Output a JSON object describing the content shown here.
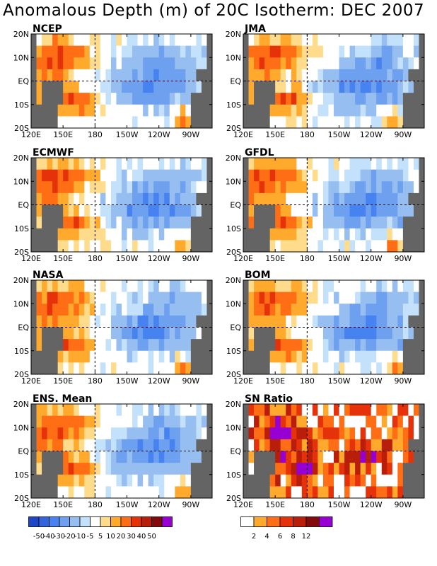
{
  "title": "Anomalous Depth (m) of 20C Isotherm: DEC 2007",
  "chart_data": [
    {
      "type": "heatmap",
      "title": "NCEP",
      "field": "anomaly",
      "seed": 11
    },
    {
      "type": "heatmap",
      "title": "JMA",
      "field": "anomaly",
      "seed": 23
    },
    {
      "type": "heatmap",
      "title": "ECMWF",
      "field": "anomaly",
      "seed": 37
    },
    {
      "type": "heatmap",
      "title": "GFDL",
      "field": "anomaly",
      "seed": 41
    },
    {
      "type": "heatmap",
      "title": "NASA",
      "field": "anomaly",
      "seed": 53
    },
    {
      "type": "heatmap",
      "title": "BOM",
      "field": "anomaly",
      "seed": 67
    },
    {
      "type": "heatmap",
      "title": "ENS. Mean",
      "field": "anomaly",
      "seed": 79
    },
    {
      "type": "heatmap",
      "title": "SN Ratio",
      "field": "snratio",
      "seed": 97
    }
  ],
  "axes": {
    "x_ticks": [
      "120E",
      "150E",
      "180",
      "150W",
      "120W",
      "90W"
    ],
    "x_values": [
      120,
      150,
      180,
      210,
      240,
      270
    ],
    "x_range": [
      120,
      290
    ],
    "y_ticks": [
      "20N",
      "10N",
      "EQ",
      "10S",
      "20S"
    ],
    "y_values": [
      20,
      10,
      0,
      -10,
      -20
    ],
    "y_range": [
      -20,
      20
    ],
    "reference_lines": {
      "x": 180,
      "y": 0
    }
  },
  "colorbar_anomaly": {
    "labels": [
      "-50",
      "-40",
      "-30",
      "-20",
      "-10",
      "-5",
      "5",
      "10",
      "20",
      "30",
      "40",
      "50"
    ],
    "levels": [
      -50,
      -40,
      -30,
      -20,
      -10,
      -5,
      5,
      10,
      20,
      30,
      40,
      50
    ],
    "colors": [
      "#1e46c8",
      "#3264dc",
      "#4682f0",
      "#6ea0f0",
      "#96bef0",
      "#c3e1fa",
      "#ffffff",
      "#ffdc8c",
      "#ffaa2d",
      "#ff6e14",
      "#e6320a",
      "#b91e0a",
      "#820a0a",
      "#9600d2"
    ]
  },
  "colorbar_sn": {
    "labels": [
      "2",
      "4",
      "6",
      "8",
      "12"
    ],
    "levels": [
      2,
      4,
      6,
      8,
      12
    ],
    "colors": [
      "#ffffff",
      "#ffaa2d",
      "#ff6e14",
      "#e6320a",
      "#b91e0a",
      "#820a0a",
      "#9600d2"
    ]
  },
  "land_color": "#646464"
}
